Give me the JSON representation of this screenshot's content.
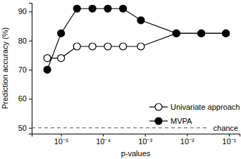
{
  "chart_data": {
    "type": "line",
    "x_label": "p-values",
    "y_label": "Prediction accuracy (%)",
    "x": [
      4.7e-06,
      1e-05,
      2.4e-05,
      5.6e-05,
      0.00013,
      0.0003,
      0.0008,
      0.0056,
      0.022,
      0.085
    ],
    "series": [
      {
        "name": "Univariate approach",
        "color": "#000000",
        "marker": "open_circle",
        "values": [
          74,
          74,
          78,
          78,
          78,
          78,
          78,
          82.5,
          82.5,
          82.5
        ]
      },
      {
        "name": "MVPA",
        "color": "#000000",
        "marker": "circle",
        "values": [
          70,
          82.5,
          91,
          91,
          91,
          91,
          87,
          82.5,
          82.5,
          82.5
        ]
      }
    ],
    "xlim": [
      2e-06,
      0.18
    ],
    "ylim": [
      48,
      93
    ],
    "xticks": [
      {
        "value": 1e-05,
        "label": "10⁻⁵"
      },
      {
        "value": 0.0001,
        "label": "10⁻⁴"
      },
      {
        "value": 0.001,
        "label": "10⁻³"
      },
      {
        "value": 0.01,
        "label": "10⁻²"
      },
      {
        "value": 0.1,
        "label": "10⁻¹"
      }
    ],
    "yticks": [
      50,
      60,
      70,
      80,
      90
    ],
    "log": "x",
    "grid": false,
    "legend": "lower right",
    "annotations": [
      {
        "y": 50,
        "text": "chance"
      }
    ]
  }
}
